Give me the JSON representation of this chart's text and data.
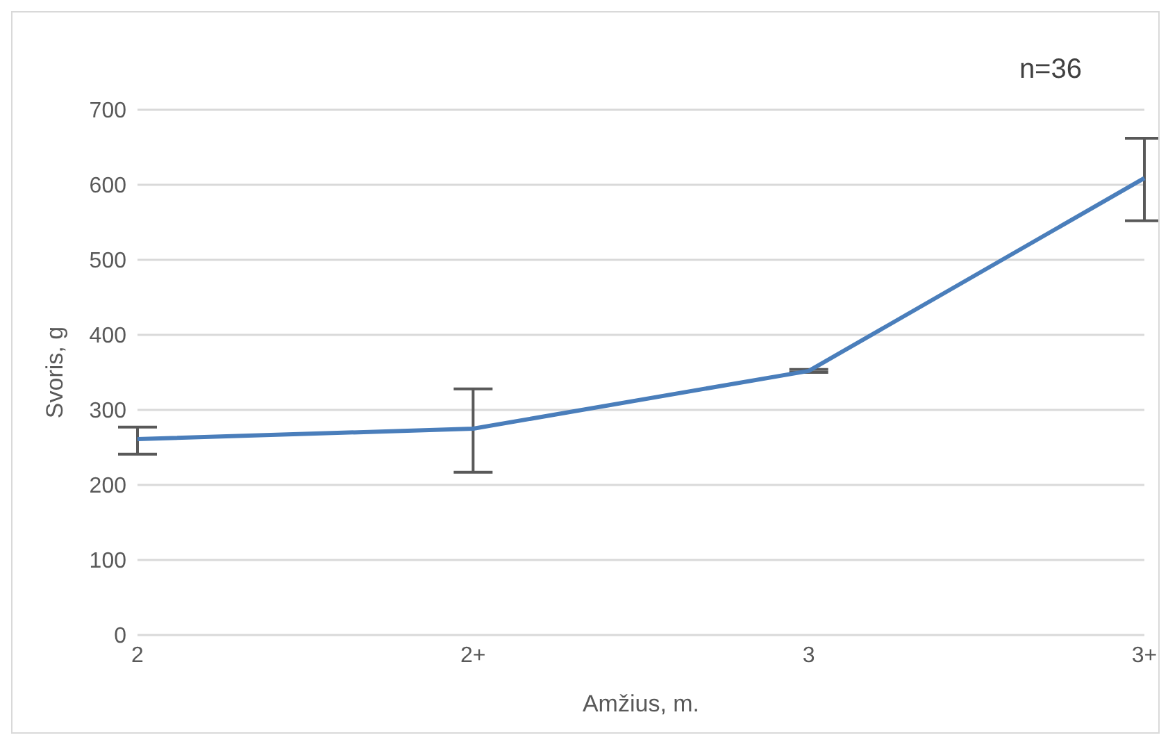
{
  "chart_data": {
    "type": "line",
    "xlabel": "Amžius, m.",
    "ylabel": "Svoris, g",
    "annotations": [
      "n=36"
    ],
    "categories": [
      "2",
      "2+",
      "3",
      "3+"
    ],
    "series": [
      {
        "color": "#4a7ebb",
        "values": [
          261,
          275,
          352,
          609
        ],
        "errors": [
          [
            241,
            277
          ],
          [
            217,
            328
          ],
          [
            350,
            354
          ],
          [
            552,
            662
          ]
        ]
      }
    ],
    "ylim": [
      0,
      700
    ],
    "yticks": [
      0,
      100,
      200,
      300,
      400,
      500,
      600,
      700
    ],
    "grid": "y",
    "legend": false,
    "marker": "none",
    "line_style": "solid"
  }
}
